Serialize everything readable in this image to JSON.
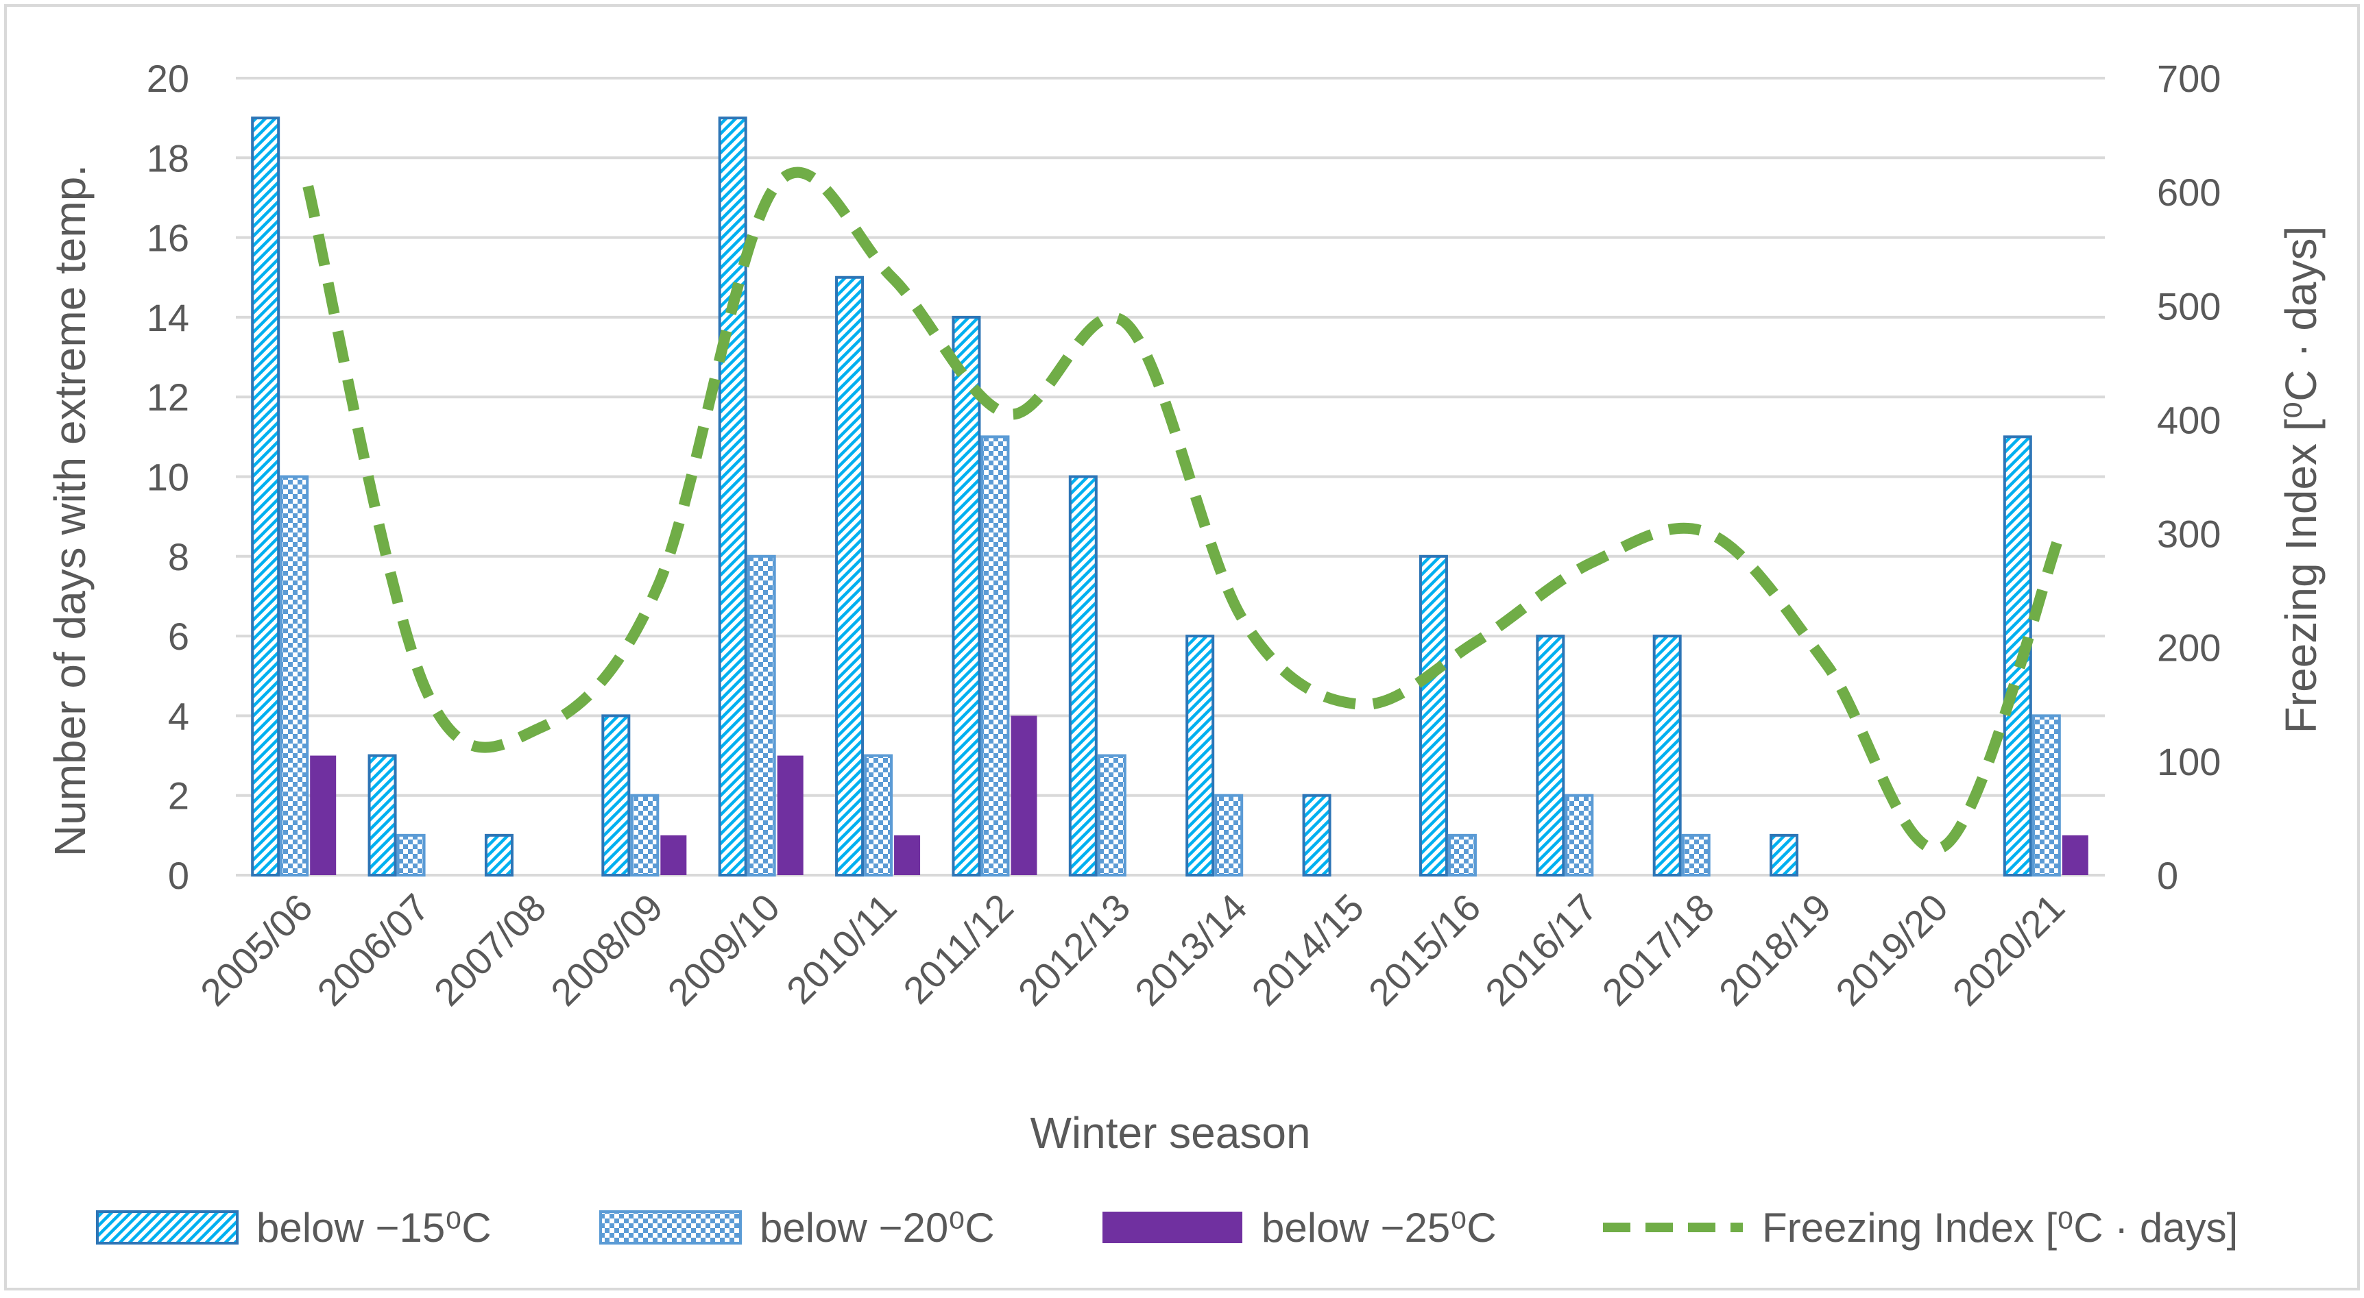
{
  "chart_data": {
    "type": "bar",
    "title": "",
    "xlabel": "Winter season",
    "ylabel": "Number of days with extreme temp.",
    "y2label": "Freezing Index [⁰C · days]",
    "ylim": [
      0,
      20
    ],
    "y2lim": [
      0,
      700
    ],
    "yticks": [
      "0",
      "2",
      "4",
      "6",
      "8",
      "10",
      "12",
      "14",
      "16",
      "18",
      "20"
    ],
    "y2ticks": [
      "0",
      "100",
      "200",
      "300",
      "400",
      "500",
      "600",
      "700"
    ],
    "grid": true,
    "legend_position": "bottom",
    "categories": [
      "2005/06",
      "2006/07",
      "2007/08",
      "2008/09",
      "2009/10",
      "2010/11",
      "2011/12",
      "2012/13",
      "2013/14",
      "2014/15",
      "2015/16",
      "2016/17",
      "2017/18",
      "2018/19",
      "2019/20",
      "2020/21"
    ],
    "series": [
      {
        "name": "below −15⁰C",
        "kind": "bar",
        "axis": "left",
        "pattern": "diagonal",
        "color": "#2e75b6",
        "values": [
          19,
          3,
          1,
          4,
          19,
          15,
          14,
          10,
          6,
          2,
          8,
          6,
          6,
          1,
          0,
          11
        ]
      },
      {
        "name": "below −20⁰C",
        "kind": "bar",
        "axis": "left",
        "pattern": "checker",
        "color": "#5b9bd5",
        "values": [
          10,
          1,
          0,
          2,
          8,
          3,
          11,
          3,
          2,
          0,
          1,
          2,
          1,
          0,
          0,
          4
        ]
      },
      {
        "name": "below −25⁰C",
        "kind": "bar",
        "axis": "left",
        "pattern": "solid",
        "color": "#7030a0",
        "values": [
          3,
          0,
          0,
          1,
          3,
          1,
          4,
          0,
          0,
          0,
          0,
          0,
          0,
          0,
          0,
          1
        ]
      },
      {
        "name": "Freezing Index [⁰C · days]",
        "kind": "line",
        "axis": "right",
        "style": "dashed",
        "color": "#70ad47",
        "values": [
          605,
          165,
          130,
          255,
          605,
          525,
          405,
          485,
          225,
          150,
          205,
          275,
          300,
          185,
          25,
          300
        ]
      }
    ]
  }
}
